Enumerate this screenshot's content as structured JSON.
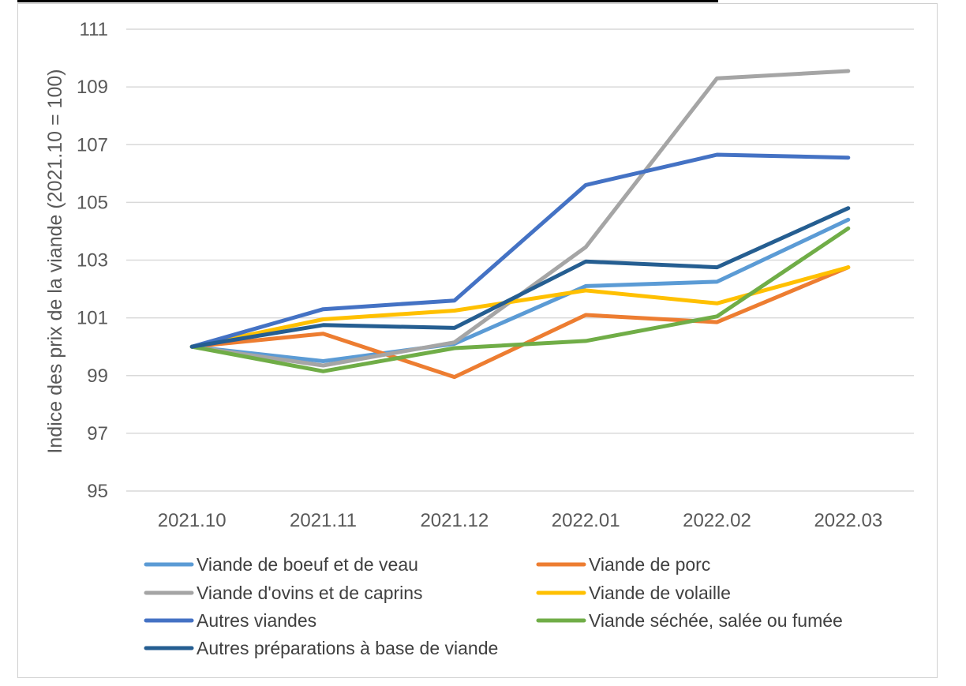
{
  "chart_data": {
    "type": "line",
    "title": "",
    "xlabel": "",
    "ylabel": "Indice des prix de la viande (2021.10 = 100)",
    "categories": [
      "2021.10",
      "2021.11",
      "2021.12",
      "2022.01",
      "2022.02",
      "2022.03"
    ],
    "ylim": [
      95,
      111
    ],
    "yticks": [
      95,
      97,
      99,
      101,
      103,
      105,
      107,
      109,
      111
    ],
    "grid": true,
    "legend_position": "bottom",
    "series": [
      {
        "name": "Viande de boeuf et de veau",
        "color": "#5B9BD5",
        "values": [
          100.0,
          99.5,
          100.1,
          102.1,
          102.25,
          104.4
        ]
      },
      {
        "name": "Viande de porc",
        "color": "#ED7D31",
        "values": [
          100.0,
          100.45,
          98.95,
          101.1,
          100.85,
          102.75
        ]
      },
      {
        "name": "Viande d'ovins et de caprins",
        "color": "#A5A5A5",
        "values": [
          100.0,
          99.35,
          100.15,
          103.45,
          109.3,
          109.55
        ]
      },
      {
        "name": "Viande de volaille",
        "color": "#FFC000",
        "values": [
          100.0,
          100.95,
          101.25,
          101.95,
          101.5,
          102.75
        ]
      },
      {
        "name": "Autres viandes",
        "color": "#4472C4",
        "values": [
          100.0,
          101.3,
          101.6,
          105.6,
          106.65,
          106.55
        ]
      },
      {
        "name": "Viande séchée, salée ou fumée",
        "color": "#70AD47",
        "values": [
          100.0,
          99.15,
          99.95,
          100.2,
          101.05,
          104.1
        ]
      },
      {
        "name": "Autres préparations à base de viande",
        "color": "#255E91",
        "values": [
          100.0,
          100.75,
          100.65,
          102.95,
          102.75,
          104.8
        ]
      }
    ]
  }
}
